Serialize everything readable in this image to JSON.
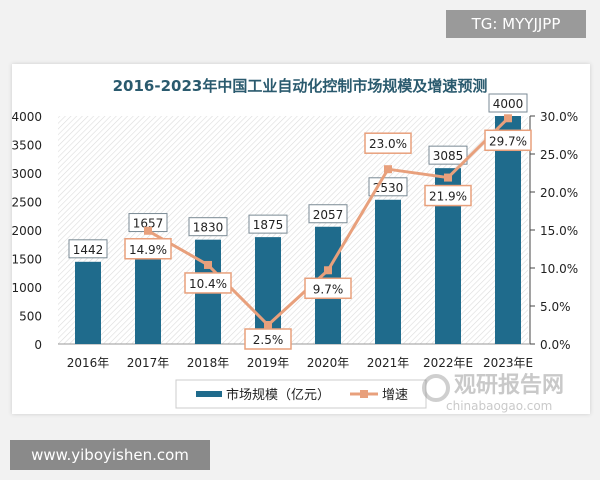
{
  "watermarks": {
    "top": "TG: MYYJJPP",
    "bottom": "www.yiboyishen.com",
    "logo_cn": "观研报告网",
    "logo_en": "chinabaogao.com"
  },
  "chart_data": {
    "type": "bar+line",
    "title": "2016-2023年中国工业自动化控制市场规模及增速预测",
    "categories": [
      "2016年",
      "2017年",
      "2018年",
      "2019年",
      "2020年",
      "2021年",
      "2022年E",
      "2023年E"
    ],
    "series": [
      {
        "name": "市场规模（亿元）",
        "type": "bar",
        "axis": "left",
        "color": "#1f6b8c",
        "values": [
          1442,
          1657,
          1830,
          1875,
          2057,
          2530,
          3085,
          4000
        ]
      },
      {
        "name": "增速",
        "type": "line",
        "axis": "right",
        "color": "#e8a07c",
        "values": [
          null,
          14.9,
          10.4,
          2.5,
          9.7,
          23.0,
          21.9,
          29.7
        ],
        "labels": [
          "",
          "14.9%",
          "10.4%",
          "2.5%",
          "9.7%",
          "23.0%",
          "21.9%",
          "29.7%"
        ]
      }
    ],
    "left_axis": {
      "ylim": [
        0,
        4000
      ],
      "ticks": [
        "0",
        "500",
        "1000",
        "1500",
        "2000",
        "2500",
        "3000",
        "3500",
        "4000"
      ]
    },
    "right_axis": {
      "ylim": [
        0,
        30
      ],
      "ticks": [
        "0.0%",
        "5.0%",
        "10.0%",
        "15.0%",
        "20.0%",
        "25.0%",
        "30.0%"
      ]
    },
    "legend": "bottom",
    "grid": false
  }
}
